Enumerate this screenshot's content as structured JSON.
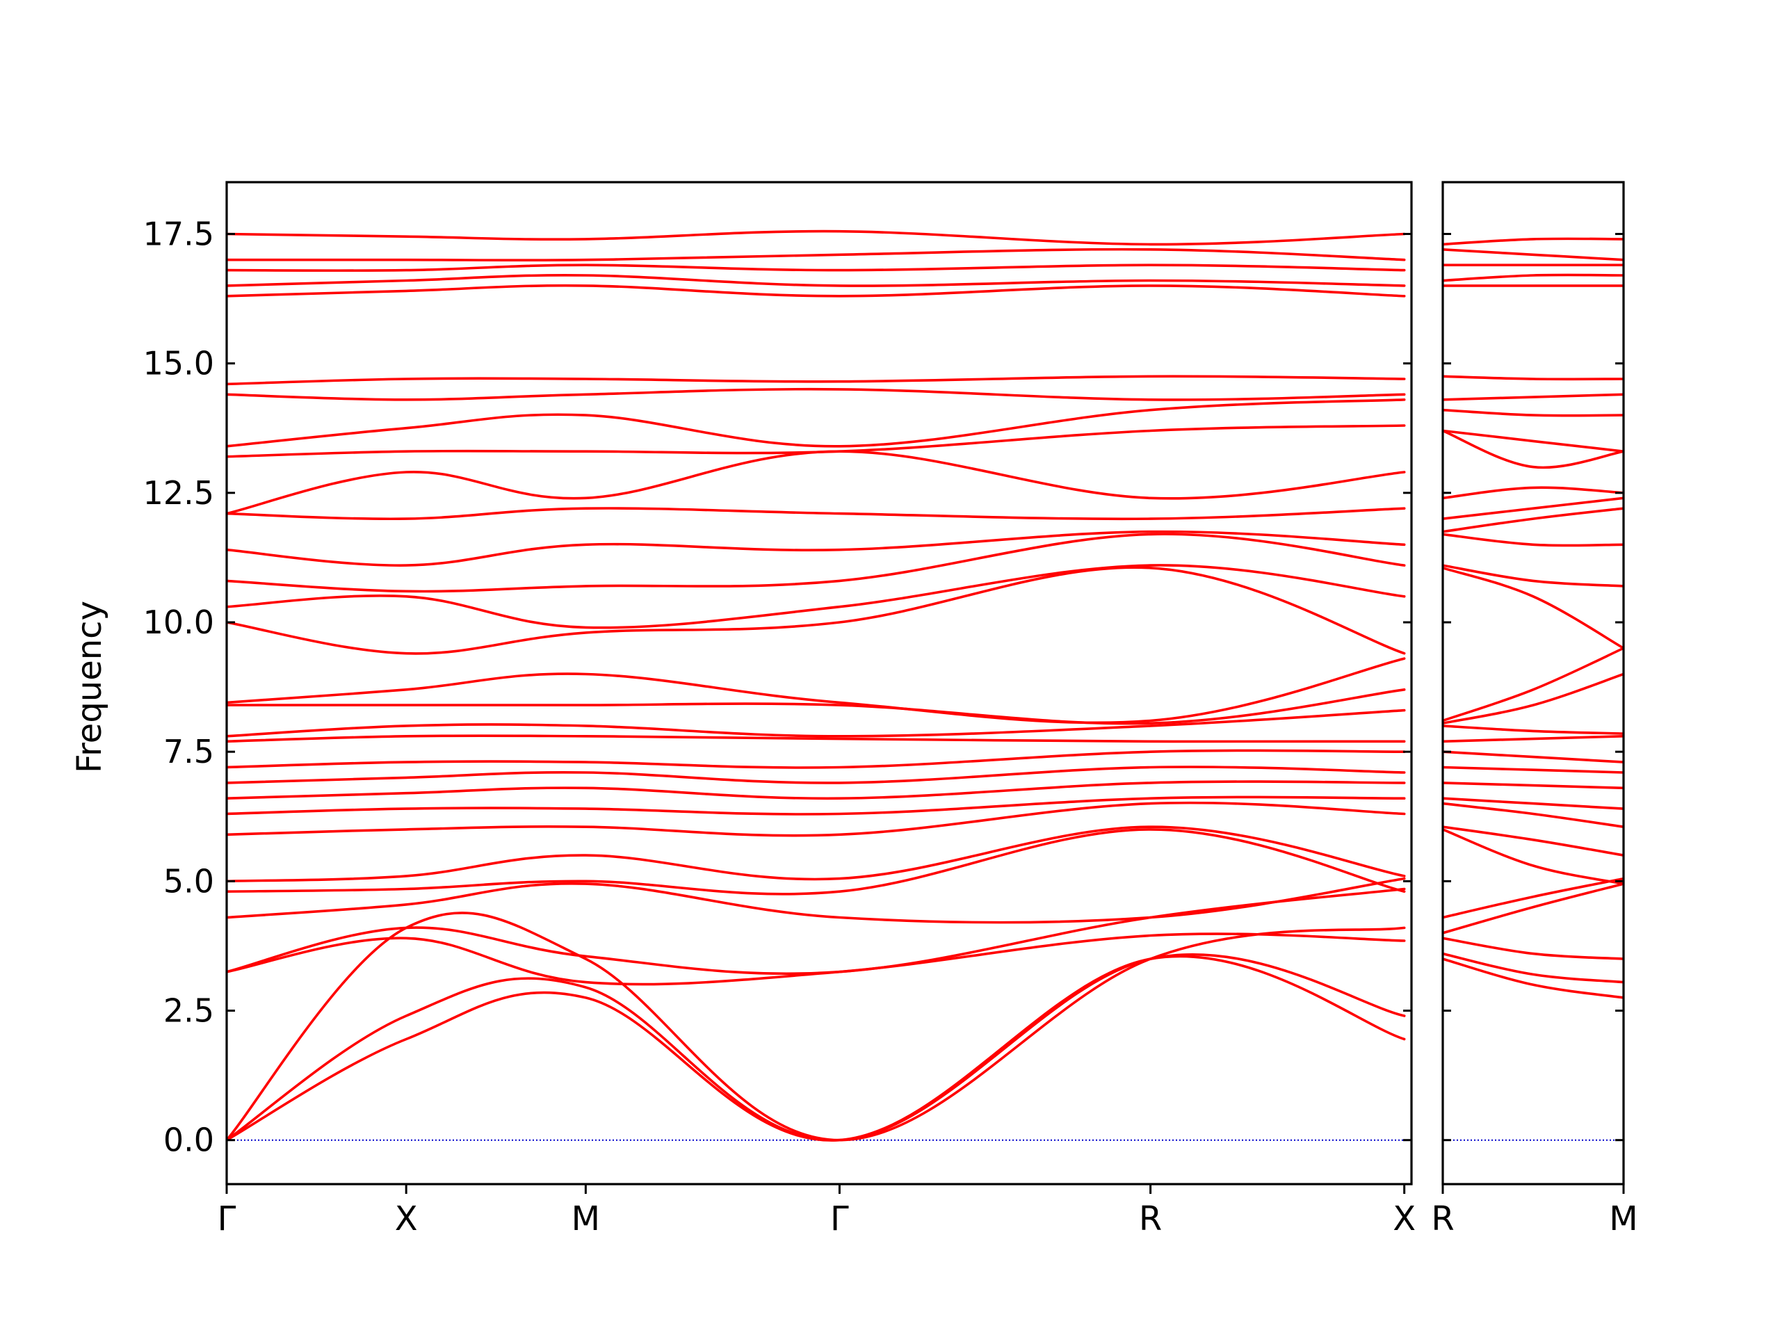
{
  "chart_data": {
    "type": "line",
    "ylabel": "Frequency",
    "ylim": [
      -0.85,
      18.5
    ],
    "yticks": [
      0.0,
      2.5,
      5.0,
      7.5,
      10.0,
      12.5,
      15.0,
      17.5
    ],
    "ytick_labels": [
      "0.0",
      "2.5",
      "5.0",
      "7.5",
      "10.0",
      "12.5",
      "15.0",
      "17.5"
    ],
    "zero_line": {
      "y": 0.0,
      "color": "#0000cc"
    },
    "line_color": "#ff0000",
    "grid": false,
    "panels": [
      {
        "name": "panel-1",
        "x_range": [
          0,
          6.6
        ],
        "ticks": [
          {
            "x": 0.0,
            "label": "Γ"
          },
          {
            "x": 1.0,
            "label": "X"
          },
          {
            "x": 2.0,
            "label": "M"
          },
          {
            "x": 3.414,
            "label": "Γ"
          },
          {
            "x": 5.146,
            "label": "R"
          },
          {
            "x": 6.56,
            "label": "X"
          }
        ],
        "series": [
          {
            "x": [
              0,
              1,
              2,
              3.414,
              5.146,
              6.56
            ],
            "values": [
              0.0,
              1.95,
              2.75,
              0.0,
              3.5,
              1.95
            ]
          },
          {
            "x": [
              0,
              1,
              2,
              3.414,
              5.146,
              6.56
            ],
            "values": [
              0.0,
              2.4,
              2.95,
              0.0,
              3.5,
              2.4
            ]
          },
          {
            "x": [
              0,
              1,
              2,
              3.414,
              5.146,
              6.56
            ],
            "values": [
              0.0,
              4.1,
              3.5,
              0.0,
              3.5,
              4.1
            ]
          },
          {
            "x": [
              0,
              1,
              2,
              3.414,
              5.146,
              6.56
            ],
            "values": [
              3.25,
              3.9,
              3.05,
              3.25,
              3.95,
              3.85
            ]
          },
          {
            "x": [
              0,
              1,
              2,
              3.414,
              5.146,
              6.56
            ],
            "values": [
              3.25,
              4.1,
              3.55,
              3.25,
              4.3,
              4.85
            ]
          },
          {
            "x": [
              0,
              1,
              2,
              3.414,
              5.146,
              6.56
            ],
            "values": [
              4.3,
              4.55,
              4.95,
              4.3,
              4.3,
              5.05
            ]
          },
          {
            "x": [
              0,
              1,
              2,
              3.414,
              5.146,
              6.56
            ],
            "values": [
              4.8,
              4.85,
              5.0,
              4.8,
              6.0,
              4.8
            ]
          },
          {
            "x": [
              0,
              1,
              2,
              3.414,
              5.146,
              6.56
            ],
            "values": [
              5.0,
              5.1,
              5.5,
              5.05,
              6.05,
              5.1
            ]
          },
          {
            "x": [
              0,
              1,
              2,
              3.414,
              5.146,
              6.56
            ],
            "values": [
              5.9,
              6.0,
              6.05,
              5.9,
              6.5,
              6.3
            ]
          },
          {
            "x": [
              0,
              1,
              2,
              3.414,
              5.146,
              6.56
            ],
            "values": [
              6.3,
              6.4,
              6.4,
              6.3,
              6.6,
              6.6
            ]
          },
          {
            "x": [
              0,
              1,
              2,
              3.414,
              5.146,
              6.56
            ],
            "values": [
              6.6,
              6.7,
              6.8,
              6.6,
              6.9,
              6.9
            ]
          },
          {
            "x": [
              0,
              1,
              2,
              3.414,
              5.146,
              6.56
            ],
            "values": [
              6.9,
              7.0,
              7.1,
              6.9,
              7.2,
              7.1
            ]
          },
          {
            "x": [
              0,
              1,
              2,
              3.414,
              5.146,
              6.56
            ],
            "values": [
              7.2,
              7.3,
              7.3,
              7.2,
              7.5,
              7.5
            ]
          },
          {
            "x": [
              0,
              1,
              2,
              3.414,
              5.146,
              6.56
            ],
            "values": [
              7.7,
              7.8,
              7.8,
              7.75,
              7.7,
              7.7
            ]
          },
          {
            "x": [
              0,
              1,
              2,
              3.414,
              5.146,
              6.56
            ],
            "values": [
              7.8,
              8.0,
              8.0,
              7.8,
              8.0,
              8.3
            ]
          },
          {
            "x": [
              0,
              1,
              2,
              3.414,
              5.146,
              6.56
            ],
            "values": [
              8.4,
              8.4,
              8.4,
              8.4,
              8.05,
              8.7
            ]
          },
          {
            "x": [
              0,
              1,
              2,
              3.414,
              5.146,
              6.56
            ],
            "values": [
              8.45,
              8.7,
              9.0,
              8.45,
              8.1,
              9.3
            ]
          },
          {
            "x": [
              0,
              1,
              2,
              3.414,
              5.146,
              6.56
            ],
            "values": [
              10.0,
              9.4,
              9.8,
              10.0,
              11.05,
              9.4
            ]
          },
          {
            "x": [
              0,
              1,
              2,
              3.414,
              5.146,
              6.56
            ],
            "values": [
              10.3,
              10.5,
              9.9,
              10.3,
              11.1,
              10.5
            ]
          },
          {
            "x": [
              0,
              1,
              2,
              3.414,
              5.146,
              6.56
            ],
            "values": [
              10.8,
              10.6,
              10.7,
              10.8,
              11.7,
              11.1
            ]
          },
          {
            "x": [
              0,
              1,
              2,
              3.414,
              5.146,
              6.56
            ],
            "values": [
              11.4,
              11.1,
              11.5,
              11.4,
              11.75,
              11.5
            ]
          },
          {
            "x": [
              0,
              1,
              2,
              3.414,
              5.146,
              6.56
            ],
            "values": [
              12.1,
              12.0,
              12.2,
              12.1,
              12.0,
              12.2
            ]
          },
          {
            "x": [
              0,
              1,
              2,
              3.414,
              5.146,
              6.56
            ],
            "values": [
              12.1,
              12.9,
              12.4,
              13.3,
              12.4,
              12.9
            ]
          },
          {
            "x": [
              0,
              1,
              2,
              3.414,
              5.146,
              6.56
            ],
            "values": [
              13.2,
              13.3,
              13.3,
              13.3,
              13.7,
              13.8
            ]
          },
          {
            "x": [
              0,
              1,
              2,
              3.414,
              5.146,
              6.56
            ],
            "values": [
              13.4,
              13.75,
              14.0,
              13.4,
              14.1,
              14.3
            ]
          },
          {
            "x": [
              0,
              1,
              2,
              3.414,
              5.146,
              6.56
            ],
            "values": [
              14.4,
              14.3,
              14.4,
              14.5,
              14.3,
              14.4
            ]
          },
          {
            "x": [
              0,
              1,
              2,
              3.414,
              5.146,
              6.56
            ],
            "values": [
              14.6,
              14.7,
              14.7,
              14.65,
              14.75,
              14.7
            ]
          },
          {
            "x": [
              0,
              1,
              2,
              3.414,
              5.146,
              6.56
            ],
            "values": [
              16.3,
              16.4,
              16.5,
              16.3,
              16.5,
              16.3
            ]
          },
          {
            "x": [
              0,
              1,
              2,
              3.414,
              5.146,
              6.56
            ],
            "values": [
              16.5,
              16.6,
              16.7,
              16.5,
              16.6,
              16.5
            ]
          },
          {
            "x": [
              0,
              1,
              2,
              3.414,
              5.146,
              6.56
            ],
            "values": [
              16.8,
              16.8,
              16.9,
              16.8,
              16.9,
              16.8
            ]
          },
          {
            "x": [
              0,
              1,
              2,
              3.414,
              5.146,
              6.56
            ],
            "values": [
              17.0,
              17.0,
              17.0,
              17.1,
              17.2,
              17.0
            ]
          },
          {
            "x": [
              0,
              1,
              2,
              3.414,
              5.146,
              6.56
            ],
            "values": [
              17.5,
              17.45,
              17.4,
              17.55,
              17.3,
              17.5
            ]
          }
        ]
      },
      {
        "name": "panel-2",
        "x_range": [
          0,
          1.0
        ],
        "ticks": [
          {
            "x": 0.0,
            "label": "R"
          },
          {
            "x": 1.0,
            "label": "M"
          }
        ],
        "series": [
          {
            "x": [
              0,
              0.5,
              1
            ],
            "values": [
              3.5,
              3.0,
              2.75
            ]
          },
          {
            "x": [
              0,
              0.5,
              1
            ],
            "values": [
              3.6,
              3.2,
              3.05
            ]
          },
          {
            "x": [
              0,
              0.5,
              1
            ],
            "values": [
              3.9,
              3.6,
              3.5
            ]
          },
          {
            "x": [
              0,
              0.5,
              1
            ],
            "values": [
              4.0,
              4.5,
              4.95
            ]
          },
          {
            "x": [
              0,
              0.5,
              1
            ],
            "values": [
              4.3,
              4.7,
              5.05
            ]
          },
          {
            "x": [
              0,
              0.5,
              1
            ],
            "values": [
              6.0,
              5.3,
              4.95
            ]
          },
          {
            "x": [
              0,
              0.5,
              1
            ],
            "values": [
              6.05,
              5.8,
              5.5
            ]
          },
          {
            "x": [
              0,
              0.5,
              1
            ],
            "values": [
              6.5,
              6.3,
              6.05
            ]
          },
          {
            "x": [
              0,
              0.5,
              1
            ],
            "values": [
              6.6,
              6.5,
              6.4
            ]
          },
          {
            "x": [
              0,
              0.5,
              1
            ],
            "values": [
              6.9,
              6.85,
              6.8
            ]
          },
          {
            "x": [
              0,
              0.5,
              1
            ],
            "values": [
              7.2,
              7.15,
              7.1
            ]
          },
          {
            "x": [
              0,
              0.5,
              1
            ],
            "values": [
              7.5,
              7.4,
              7.3
            ]
          },
          {
            "x": [
              0,
              0.5,
              1
            ],
            "values": [
              7.7,
              7.75,
              7.8
            ]
          },
          {
            "x": [
              0,
              0.5,
              1
            ],
            "values": [
              8.0,
              7.9,
              7.85
            ]
          },
          {
            "x": [
              0,
              0.5,
              1
            ],
            "values": [
              8.05,
              8.4,
              9.0
            ]
          },
          {
            "x": [
              0,
              0.5,
              1
            ],
            "values": [
              8.1,
              8.7,
              9.5
            ]
          },
          {
            "x": [
              0,
              0.5,
              1
            ],
            "values": [
              11.05,
              10.5,
              9.5
            ]
          },
          {
            "x": [
              0,
              0.5,
              1
            ],
            "values": [
              11.1,
              10.8,
              10.7
            ]
          },
          {
            "x": [
              0,
              0.5,
              1
            ],
            "values": [
              11.7,
              11.5,
              11.5
            ]
          },
          {
            "x": [
              0,
              0.5,
              1
            ],
            "values": [
              11.75,
              12.0,
              12.2
            ]
          },
          {
            "x": [
              0,
              0.5,
              1
            ],
            "values": [
              12.0,
              12.2,
              12.4
            ]
          },
          {
            "x": [
              0,
              0.5,
              1
            ],
            "values": [
              12.4,
              12.6,
              12.5
            ]
          },
          {
            "x": [
              0,
              0.5,
              1
            ],
            "values": [
              13.7,
              13.0,
              13.3
            ]
          },
          {
            "x": [
              0,
              0.5,
              1
            ],
            "values": [
              13.7,
              13.5,
              13.3
            ]
          },
          {
            "x": [
              0,
              0.5,
              1
            ],
            "values": [
              14.1,
              14.0,
              14.0
            ]
          },
          {
            "x": [
              0,
              0.5,
              1
            ],
            "values": [
              14.3,
              14.35,
              14.4
            ]
          },
          {
            "x": [
              0,
              0.5,
              1
            ],
            "values": [
              14.75,
              14.7,
              14.7
            ]
          },
          {
            "x": [
              0,
              0.5,
              1
            ],
            "values": [
              16.5,
              16.5,
              16.5
            ]
          },
          {
            "x": [
              0,
              0.5,
              1
            ],
            "values": [
              16.6,
              16.7,
              16.7
            ]
          },
          {
            "x": [
              0,
              0.5,
              1
            ],
            "values": [
              16.9,
              16.9,
              16.9
            ]
          },
          {
            "x": [
              0,
              0.5,
              1
            ],
            "values": [
              17.2,
              17.1,
              17.0
            ]
          },
          {
            "x": [
              0,
              0.5,
              1
            ],
            "values": [
              17.3,
              17.4,
              17.4
            ]
          }
        ]
      }
    ]
  }
}
